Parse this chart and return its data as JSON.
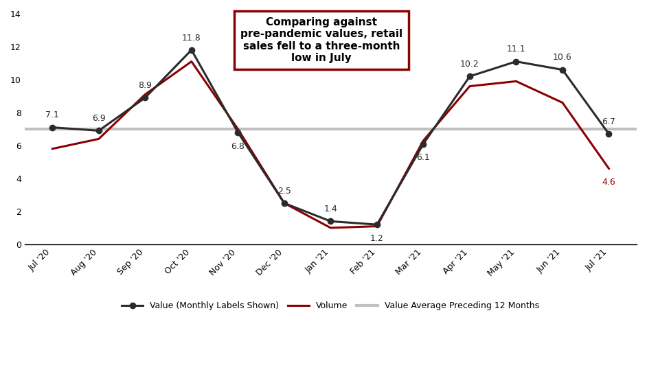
{
  "x_labels": [
    "Jul '20",
    "Aug '20",
    "Sep '20",
    "Oct '20",
    "Nov '20",
    "Dec '20",
    "Jan '21",
    "Feb '21",
    "Mar '21",
    "Apr '21",
    "May '21",
    "Jun '21",
    "Jul '21"
  ],
  "value_data": [
    7.1,
    6.9,
    8.9,
    11.8,
    6.8,
    2.5,
    1.4,
    1.2,
    6.1,
    10.2,
    11.1,
    10.6,
    6.7
  ],
  "volume_data": [
    5.8,
    6.4,
    9.1,
    11.1,
    7.0,
    2.5,
    1.0,
    1.1,
    6.3,
    9.6,
    9.9,
    8.6,
    4.6
  ],
  "avg_value": 7.0,
  "value_color": "#2b2b2b",
  "volume_color": "#8B0000",
  "avg_color": "#C0C0C0",
  "last_volume_label_color": "#8B0000",
  "ylim": [
    0,
    14
  ],
  "yticks": [
    0,
    2,
    4,
    6,
    8,
    10,
    12,
    14
  ],
  "annotation_box_text": "Comparing against\npre-pandemic values, retail\nsales fell to a three-month\nlow in July",
  "annotation_box_edge_color": "#8B0000",
  "legend_value_label": "Value (Monthly Labels Shown)",
  "legend_volume_label": "Volume",
  "legend_avg_label": "Value Average Preceding 12 Months",
  "value_label_offsets_up": [
    true,
    true,
    true,
    true,
    false,
    true,
    true,
    false,
    false,
    true,
    true,
    true,
    true
  ],
  "label_fontsize": 9,
  "legend_fontsize": 9,
  "annotation_fontsize": 11
}
